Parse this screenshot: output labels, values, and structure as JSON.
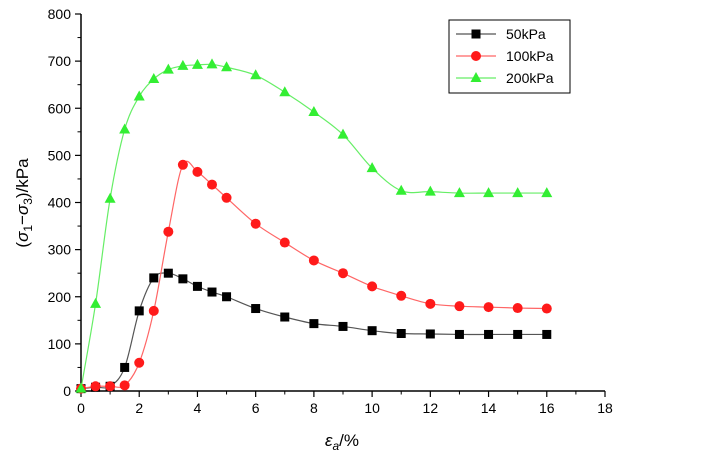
{
  "chart_data": {
    "type": "line",
    "xlabel": "εa/%",
    "xlabel_main": "ε",
    "xlabel_sub": "a",
    "xlabel_unit": "/%",
    "ylabel": "(σ1−σ3)/kPa",
    "ylabel_parts": {
      "open": "(",
      "s1": "σ",
      "sub1": "1",
      "minus": "−",
      "s3": "σ",
      "sub3": "3",
      "close": ")/kPa"
    },
    "xlim": [
      0,
      18
    ],
    "ylim": [
      0,
      800
    ],
    "xticks": [
      0,
      2,
      4,
      6,
      8,
      10,
      12,
      14,
      16,
      18
    ],
    "yticks": [
      0,
      100,
      200,
      300,
      400,
      500,
      600,
      700,
      800
    ],
    "legend_position": "top-right",
    "series": [
      {
        "name": "50kPa",
        "color": "#000000",
        "line_color": "#555555",
        "marker": "square",
        "x": [
          0,
          0.5,
          1,
          1.5,
          2,
          2.5,
          3,
          3.5,
          4,
          4.5,
          5,
          6,
          7,
          8,
          9,
          10,
          11,
          12,
          13,
          14,
          15,
          16
        ],
        "y": [
          5,
          8,
          10,
          50,
          170,
          240,
          250,
          238,
          222,
          210,
          200,
          175,
          157,
          143,
          137,
          128,
          122,
          121,
          120,
          120,
          120,
          120
        ]
      },
      {
        "name": "100kPa",
        "color": "#ff1a1a",
        "line_color": "#ff6666",
        "marker": "circle",
        "x": [
          0,
          0.5,
          1,
          1.5,
          2,
          2.5,
          3,
          3.5,
          4,
          4.5,
          5,
          6,
          7,
          8,
          9,
          10,
          11,
          12,
          13,
          14,
          15,
          16
        ],
        "y": [
          5,
          10,
          10,
          12,
          60,
          170,
          338,
          480,
          465,
          438,
          410,
          355,
          315,
          277,
          250,
          222,
          202,
          185,
          180,
          178,
          176,
          175
        ]
      },
      {
        "name": "200kPa",
        "color": "#33ee33",
        "line_color": "#66ee66",
        "marker": "triangle",
        "x": [
          0,
          0.5,
          1,
          1.5,
          2,
          2.5,
          3,
          3.5,
          4,
          4.5,
          5,
          6,
          7,
          8,
          9,
          10,
          11,
          12,
          13,
          14,
          15,
          16
        ],
        "y": [
          5,
          185,
          408,
          555,
          625,
          662,
          682,
          690,
          692,
          693,
          687,
          670,
          634,
          592,
          544,
          473,
          425,
          423,
          420,
          420,
          420,
          420
        ]
      }
    ]
  }
}
